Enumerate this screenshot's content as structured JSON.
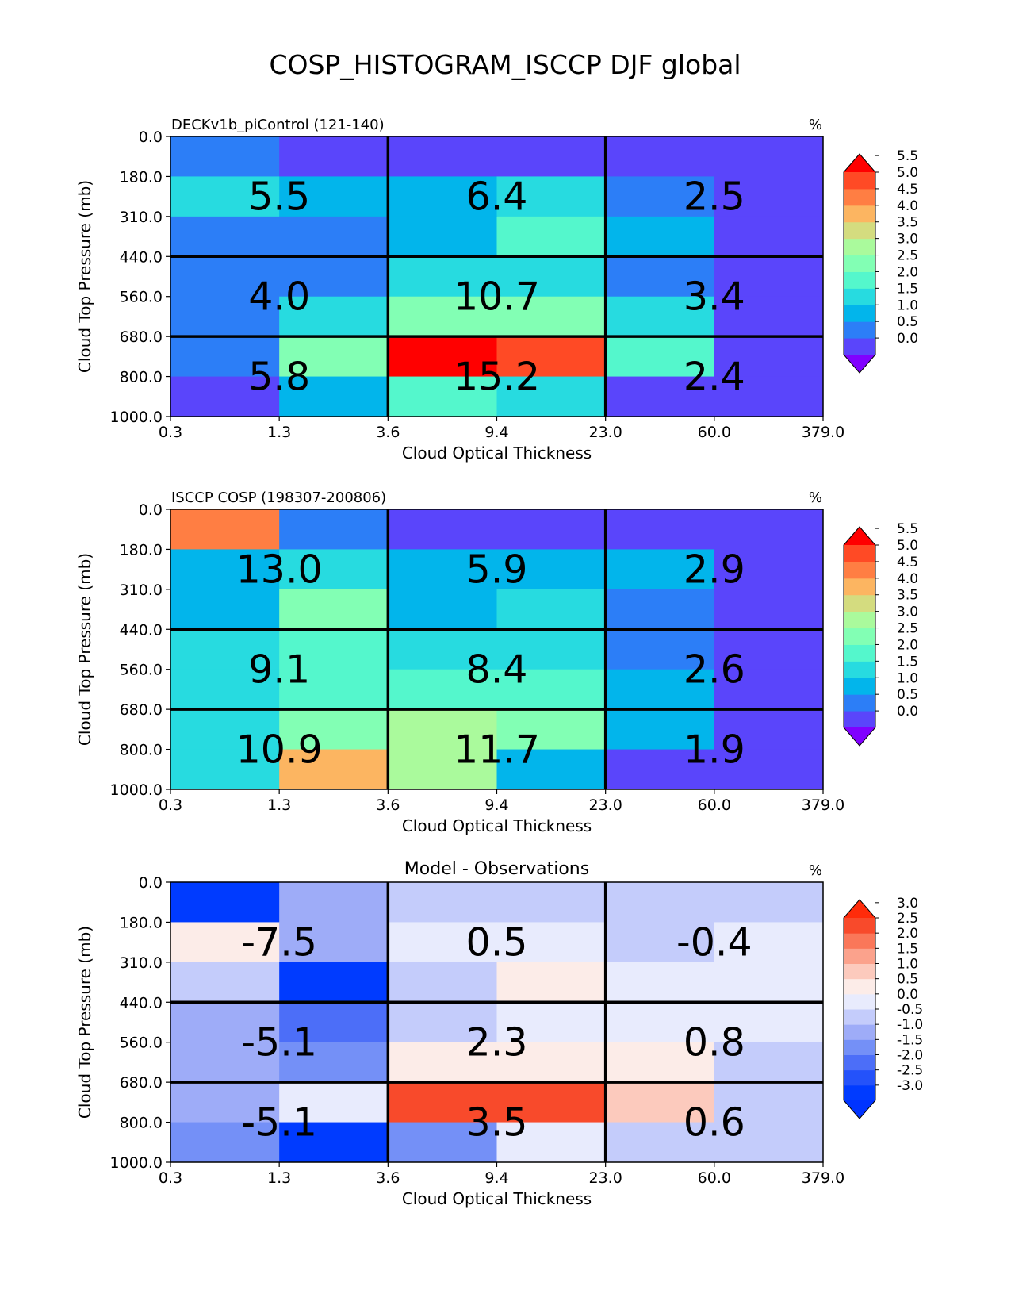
{
  "figure_title": "COSP_HISTOGRAM_ISCCP DJF global",
  "chart_data": [
    {
      "type": "heatmap",
      "title_left": "DECKv1b_piControl (121-140)",
      "title_center": "",
      "units": "%",
      "xlabel": "Cloud Optical Thickness",
      "ylabel": "Cloud Top Pressure (mb)",
      "x_ticks": [
        "0.3",
        "1.3",
        "3.6",
        "9.4",
        "23.0",
        "60.0",
        "379.0"
      ],
      "y_ticks": [
        "0.0",
        "180.0",
        "310.0",
        "440.0",
        "560.0",
        "680.0",
        "800.0",
        "1000.0"
      ],
      "values": [
        [
          0.5,
          0.1,
          0.1,
          0.1,
          0.1,
          0.1
        ],
        [
          1.9,
          1.3,
          1.3,
          1.9,
          0.7,
          0.1
        ],
        [
          0.6,
          0.5,
          1.3,
          2.2,
          1.3,
          0.1
        ],
        [
          0.6,
          0.6,
          1.9,
          1.9,
          0.8,
          0.1
        ],
        [
          0.6,
          1.9,
          2.8,
          2.8,
          1.8,
          0.1
        ],
        [
          0.7,
          2.8,
          5.9,
          5.0,
          2.2,
          0.1
        ],
        [
          0.1,
          1.3,
          2.4,
          1.8,
          0.1,
          0.1
        ]
      ],
      "block_sums": [
        [
          "5.5",
          "6.4",
          "2.5"
        ],
        [
          "4.0",
          "10.7",
          "3.4"
        ],
        [
          "5.8",
          "15.2",
          "2.4"
        ]
      ],
      "colorbar": {
        "ticks": [
          "0.0",
          "0.5",
          "1.0",
          "1.5",
          "2.0",
          "2.5",
          "3.0",
          "3.5",
          "4.0",
          "4.5",
          "5.0",
          "5.5"
        ],
        "under_color": "#8000ff",
        "over_color": "#ff0000",
        "colors": [
          "#5a45fb",
          "#2c7ef7",
          "#02b5eb",
          "#27dbe0",
          "#54f7cc",
          "#82ffb4",
          "#aafa9c",
          "#d4dc7f",
          "#fcb561",
          "#ff7e43",
          "#ff4a25"
        ]
      }
    },
    {
      "type": "heatmap",
      "title_left": "ISCCP COSP (198307-200806)",
      "title_center": "",
      "units": "%",
      "xlabel": "Cloud Optical Thickness",
      "ylabel": "Cloud Top Pressure (mb)",
      "x_ticks": [
        "0.3",
        "1.3",
        "3.6",
        "9.4",
        "23.0",
        "60.0",
        "379.0"
      ],
      "y_ticks": [
        "0.0",
        "180.0",
        "310.0",
        "440.0",
        "560.0",
        "680.0",
        "800.0",
        "1000.0"
      ],
      "values": [
        [
          4.7,
          0.7,
          0.2,
          0.2,
          0.2,
          0.1
        ],
        [
          1.3,
          1.9,
          1.3,
          1.3,
          1.3,
          0.1
        ],
        [
          1.3,
          2.8,
          1.3,
          1.8,
          0.7,
          0.1
        ],
        [
          1.9,
          2.3,
          1.9,
          1.9,
          0.7,
          0.1
        ],
        [
          1.9,
          2.3,
          2.3,
          2.3,
          1.3,
          0.1
        ],
        [
          1.9,
          2.8,
          3.3,
          2.8,
          1.3,
          0.1
        ],
        [
          1.9,
          4.3,
          3.3,
          1.3,
          0.1,
          0.1
        ]
      ],
      "block_sums": [
        [
          "13.0",
          "5.9",
          "2.9"
        ],
        [
          "9.1",
          "8.4",
          "2.6"
        ],
        [
          "10.9",
          "11.7",
          "1.9"
        ]
      ],
      "colorbar": {
        "ticks": [
          "0.0",
          "0.5",
          "1.0",
          "1.5",
          "2.0",
          "2.5",
          "3.0",
          "3.5",
          "4.0",
          "4.5",
          "5.0",
          "5.5"
        ],
        "under_color": "#8000ff",
        "over_color": "#ff0000",
        "colors": [
          "#5a45fb",
          "#2c7ef7",
          "#02b5eb",
          "#27dbe0",
          "#54f7cc",
          "#82ffb4",
          "#aafa9c",
          "#d4dc7f",
          "#fcb561",
          "#ff7e43",
          "#ff4a25"
        ]
      }
    },
    {
      "type": "heatmap",
      "title_left": "",
      "title_center": "Model - Observations",
      "units": "%",
      "xlabel": "Cloud Optical Thickness",
      "ylabel": "Cloud Top Pressure (mb)",
      "x_ticks": [
        "0.3",
        "1.3",
        "3.6",
        "9.4",
        "23.0",
        "60.0",
        "379.0"
      ],
      "y_ticks": [
        "0.0",
        "180.0",
        "310.0",
        "440.0",
        "560.0",
        "680.0",
        "800.0",
        "1000.0"
      ],
      "values": [
        [
          -3.0,
          -0.6,
          -0.1,
          -0.1,
          -0.1,
          -0.1
        ],
        [
          0.7,
          -0.6,
          0.2,
          0.2,
          -0.1,
          0.2
        ],
        [
          -0.1,
          -2.7,
          -0.1,
          0.7,
          0.2,
          0.2
        ],
        [
          -0.6,
          -1.6,
          -0.1,
          0.2,
          0.2,
          0.2
        ],
        [
          -0.6,
          -1.1,
          0.7,
          0.7,
          0.7,
          -0.1
        ],
        [
          -0.6,
          0.2,
          2.7,
          2.7,
          1.2,
          -0.1
        ],
        [
          -1.1,
          -2.7,
          -1.1,
          0.2,
          -0.1,
          -0.1
        ]
      ],
      "block_sums": [
        [
          "-7.5",
          "0.5",
          "-0.4"
        ],
        [
          "-5.1",
          "2.3",
          "0.8"
        ],
        [
          "-5.1",
          "3.5",
          "0.6"
        ]
      ],
      "colorbar": {
        "ticks": [
          "-3.0",
          "-2.5",
          "-2.0",
          "-1.5",
          "-1.0",
          "-0.5",
          "0.0",
          "0.5",
          "1.0",
          "1.5",
          "2.0",
          "2.5",
          "3.0"
        ],
        "under_color": "#0033ff",
        "over_color": "#ff2b0a",
        "colors": [
          "#003bff",
          "#2452fa",
          "#4c6ef8",
          "#7490f7",
          "#9eacf8",
          "#c4ccfb",
          "#e8ebfd",
          "#fcece8",
          "#fccabd",
          "#fba28c",
          "#fa7759",
          "#f84a2b"
        ]
      }
    }
  ]
}
